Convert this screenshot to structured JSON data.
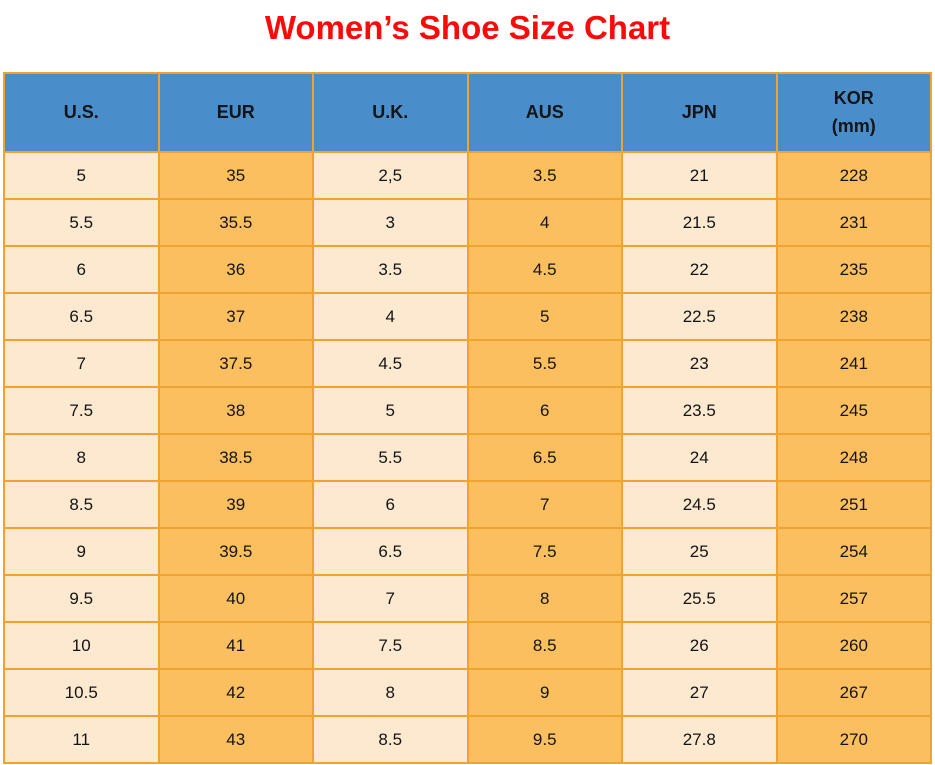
{
  "title": "Women’s Shoe Size Chart",
  "colors": {
    "title_red": "#fb0a0a",
    "header_blue": "#4a8dcb",
    "cell_cream": "#fce9cf",
    "cell_orange": "#fcbf60",
    "border_orange": "#f0a330",
    "text": "#141414"
  },
  "chart_data": {
    "type": "table",
    "title": "Women’s Shoe Size Chart",
    "columns": [
      [
        "U.S."
      ],
      [
        "EUR"
      ],
      [
        "U.K."
      ],
      [
        "AUS"
      ],
      [
        "JPN"
      ],
      [
        "KOR",
        "(mm)"
      ]
    ],
    "column_fills": [
      "cream",
      "orange",
      "cream",
      "orange",
      "cream",
      "orange"
    ],
    "rows": [
      [
        "5",
        "35",
        "2,5",
        "3.5",
        "21",
        "228"
      ],
      [
        "5.5",
        "35.5",
        "3",
        "4",
        "21.5",
        "231"
      ],
      [
        "6",
        "36",
        "3.5",
        "4.5",
        "22",
        "235"
      ],
      [
        "6.5",
        "37",
        "4",
        "5",
        "22.5",
        "238"
      ],
      [
        "7",
        "37.5",
        "4.5",
        "5.5",
        "23",
        "241"
      ],
      [
        "7.5",
        "38",
        "5",
        "6",
        "23.5",
        "245"
      ],
      [
        "8",
        "38.5",
        "5.5",
        "6.5",
        "24",
        "248"
      ],
      [
        "8.5",
        "39",
        "6",
        "7",
        "24.5",
        "251"
      ],
      [
        "9",
        "39.5",
        "6.5",
        "7.5",
        "25",
        "254"
      ],
      [
        "9.5",
        "40",
        "7",
        "8",
        "25.5",
        "257"
      ],
      [
        "10",
        "41",
        "7.5",
        "8.5",
        "26",
        "260"
      ],
      [
        "10.5",
        "42",
        "8",
        "9",
        "27",
        "267"
      ],
      [
        "11",
        "43",
        "8.5",
        "9.5",
        "27.8",
        "270"
      ]
    ]
  }
}
